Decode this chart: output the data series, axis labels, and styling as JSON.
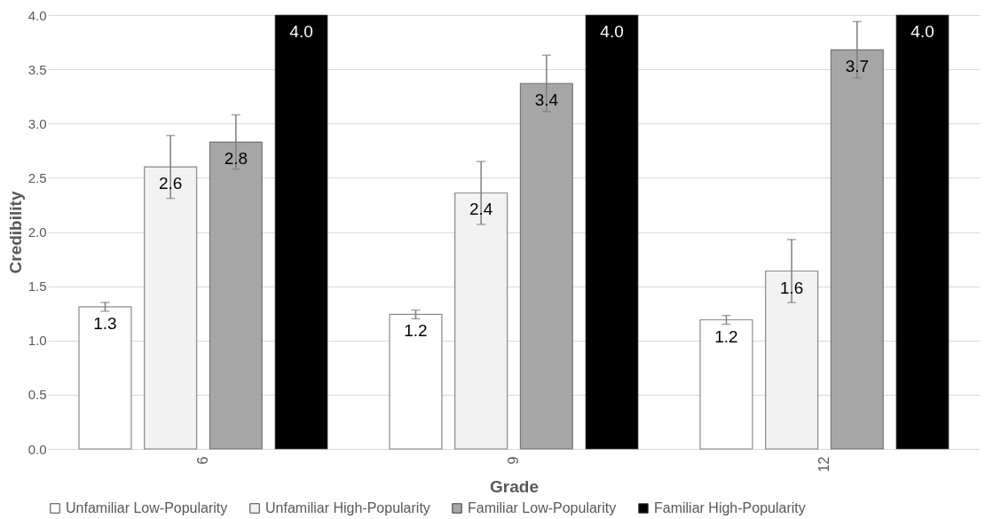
{
  "chart_data": {
    "type": "bar",
    "xlabel": "Grade",
    "ylabel": "Credibility",
    "categories": [
      "6",
      "9",
      "12"
    ],
    "series": [
      {
        "name": "Unfamiliar Low-Popularity",
        "color": "#ffffff",
        "values": [
          1.31,
          1.24,
          1.19
        ],
        "errors": [
          0.04,
          0.04,
          0.04
        ],
        "value_labels": [
          "1.3",
          "1.2",
          "1.2"
        ]
      },
      {
        "name": "Unfamiliar High-Popularity",
        "color": "#f2f2f2",
        "values": [
          2.6,
          2.36,
          1.64
        ],
        "errors": [
          0.29,
          0.29,
          0.29
        ],
        "value_labels": [
          "2.6",
          "2.4",
          "1.6"
        ]
      },
      {
        "name": "Familiar Low-Popularity",
        "color": "#a6a6a6",
        "values": [
          2.83,
          3.37,
          3.68
        ],
        "errors": [
          0.25,
          0.26,
          0.26
        ],
        "value_labels": [
          "2.8",
          "3.4",
          "3.7"
        ]
      },
      {
        "name": "Familiar High-Popularity",
        "color": "#000000",
        "values": [
          4.0,
          4.0,
          4.0
        ],
        "errors": [
          null,
          null,
          null
        ],
        "value_labels": [
          "4.0",
          "4.0",
          "4.0"
        ]
      }
    ],
    "ylim": [
      0,
      4
    ],
    "yticks": [
      {
        "value": 0,
        "label": "0.0"
      },
      {
        "value": 0.5,
        "label": "0.5"
      },
      {
        "value": 1,
        "label": "1.0"
      },
      {
        "value": 1.5,
        "label": "1.5"
      },
      {
        "value": 2,
        "label": "2.0"
      },
      {
        "value": 2.5,
        "label": "2.5"
      },
      {
        "value": 3,
        "label": "3.0"
      },
      {
        "value": 3.5,
        "label": "3.5"
      },
      {
        "value": 4,
        "label": "4.0"
      }
    ],
    "grid": "y",
    "legend": "bottom"
  }
}
